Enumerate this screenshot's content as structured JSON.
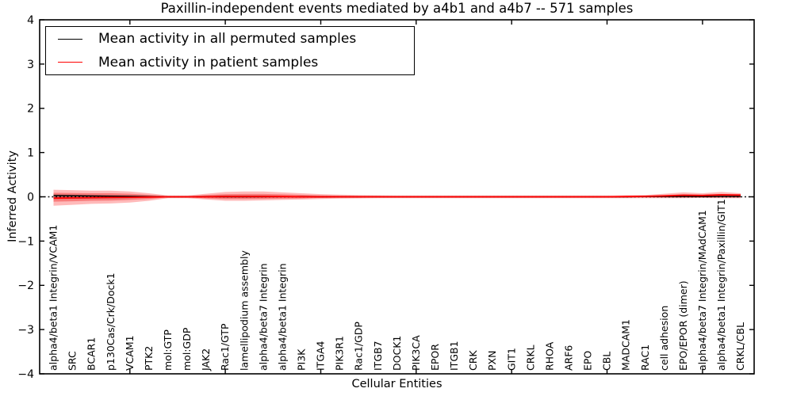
{
  "title": "Paxillin-independent events mediated by a4b1 and a4b7 -- 571 samples",
  "legend": {
    "items": [
      {
        "label": "Mean activity in all permuted samples",
        "color": "#000000"
      },
      {
        "label": "Mean activity in patient samples",
        "color": "#ff0000"
      }
    ]
  },
  "chart_data": {
    "type": "line",
    "title": "Paxillin-independent events mediated by a4b1 and a4b7 -- 571 samples",
    "xlabel": "Cellular Entities",
    "ylabel": "Inferred Activity",
    "ylim": [
      -4,
      4
    ],
    "yticks": [
      4,
      3,
      2,
      1,
      0,
      -1,
      -2,
      -3,
      -4
    ],
    "grid": false,
    "legend_position": "upper left",
    "zero_line": {
      "style": "dotted",
      "color": "#000000",
      "y": 0
    },
    "categories": [
      "alpha4/beta1 Integrin/VCAM1",
      "SRC",
      "BCAR1",
      "p130Cas/Crk/Dock1",
      "VCAM1",
      "PTK2",
      "mol:GTP",
      "mol:GDP",
      "JAK2",
      "Rac1/GTP",
      "lamellipodium assembly",
      "alpha4/beta7 Integrin",
      "alpha4/beta1 Integrin",
      "PI3K",
      "ITGA4",
      "PIK3R1",
      "Rac1/GDP",
      "ITGB7",
      "DOCK1",
      "PIK3CA",
      "EPOR",
      "ITGB1",
      "CRK",
      "PXN",
      "GIT1",
      "CRKL",
      "RHOA",
      "ARF6",
      "EPO",
      "CBL",
      "MADCAM1",
      "RAC1",
      "cell adhesion",
      "EPO/EPOR (dimer)",
      "alpha4/beta7 Integrin/MAdCAM1",
      "alpha4/beta1 Integrin/Paxillin/GIT1",
      "CRKL/CBL"
    ],
    "major_xtick_indices": [
      4,
      9,
      14,
      19,
      24,
      29,
      34
    ],
    "series": [
      {
        "name": "Mean activity in all permuted samples",
        "color": "#000000",
        "values": [
          0.03,
          0.025,
          0.02,
          0.015,
          0.01,
          0.005,
          0,
          0,
          0.005,
          0.01,
          0.01,
          0.01,
          0.005,
          0.005,
          0,
          0,
          0,
          0,
          0,
          0,
          0,
          0,
          0,
          0,
          0,
          0,
          0,
          0,
          0,
          0,
          0,
          0.005,
          0.005,
          0.01,
          0.005,
          0.01,
          0.01
        ]
      },
      {
        "name": "Mean activity in patient samples",
        "color": "#ff0000",
        "values": [
          -0.03,
          -0.025,
          -0.02,
          -0.015,
          -0.01,
          -0.005,
          0,
          0,
          0,
          0.005,
          0.005,
          0.005,
          0.005,
          0,
          0,
          0,
          0,
          0,
          0,
          0,
          0,
          0,
          0,
          0,
          0,
          0,
          0,
          0,
          0,
          0,
          0.005,
          0.01,
          0.02,
          0.035,
          0.03,
          0.045,
          0.04
        ]
      }
    ],
    "bands": [
      {
        "name": "patient-band-outer",
        "color": "#ff0000",
        "opacity": 0.27,
        "upper": [
          0.16,
          0.15,
          0.14,
          0.14,
          0.12,
          0.08,
          0.03,
          0.03,
          0.07,
          0.11,
          0.12,
          0.12,
          0.1,
          0.08,
          0.06,
          0.05,
          0.04,
          0.035,
          0.03,
          0.03,
          0.03,
          0.03,
          0.03,
          0.03,
          0.03,
          0.03,
          0.03,
          0.03,
          0.03,
          0.03,
          0.035,
          0.04,
          0.07,
          0.1,
          0.08,
          0.11,
          0.08
        ],
        "lower": [
          -0.2,
          -0.18,
          -0.16,
          -0.15,
          -0.13,
          -0.09,
          -0.03,
          -0.03,
          -0.06,
          -0.09,
          -0.09,
          -0.08,
          -0.07,
          -0.06,
          -0.05,
          -0.04,
          -0.035,
          -0.03,
          -0.03,
          -0.03,
          -0.03,
          -0.03,
          -0.03,
          -0.03,
          -0.03,
          -0.03,
          -0.03,
          -0.03,
          -0.03,
          -0.03,
          -0.03,
          -0.03,
          -0.03,
          -0.03,
          -0.025,
          -0.03,
          -0.03
        ]
      },
      {
        "name": "patient-band-inner",
        "color": "#ee0000",
        "opacity": 0.33,
        "upper": [
          0.09,
          0.085,
          0.08,
          0.08,
          0.07,
          0.045,
          0.015,
          0.015,
          0.04,
          0.06,
          0.065,
          0.065,
          0.055,
          0.045,
          0.03,
          0.025,
          0.02,
          0.02,
          0.015,
          0.015,
          0.015,
          0.015,
          0.015,
          0.015,
          0.015,
          0.015,
          0.015,
          0.015,
          0.015,
          0.015,
          0.02,
          0.02,
          0.04,
          0.055,
          0.045,
          0.06,
          0.045
        ],
        "lower": [
          -0.11,
          -0.1,
          -0.09,
          -0.085,
          -0.07,
          -0.05,
          -0.015,
          -0.015,
          -0.035,
          -0.05,
          -0.05,
          -0.045,
          -0.04,
          -0.035,
          -0.025,
          -0.02,
          -0.02,
          -0.015,
          -0.015,
          -0.015,
          -0.015,
          -0.015,
          -0.015,
          -0.015,
          -0.015,
          -0.015,
          -0.015,
          -0.015,
          -0.015,
          -0.015,
          -0.015,
          -0.015,
          -0.015,
          -0.015,
          -0.012,
          -0.015,
          -0.015
        ]
      },
      {
        "name": "permuted-band",
        "color": "#222222",
        "opacity": 0.3,
        "upper": [
          0.05,
          0.045,
          0.04,
          0.035,
          0.03,
          0.02,
          0.008,
          0.008,
          0.015,
          0.025,
          0.025,
          0.02,
          0.015,
          0.01,
          0.008,
          0.008,
          0.008,
          0.008,
          0.008,
          0.008,
          0.008,
          0.008,
          0.008,
          0.008,
          0.008,
          0.008,
          0.008,
          0.008,
          0.008,
          0.008,
          0.008,
          0.008,
          0.01,
          0.012,
          0.012,
          0.012,
          0.012
        ],
        "lower": [
          -0.05,
          -0.045,
          -0.04,
          -0.035,
          -0.03,
          -0.02,
          -0.008,
          -0.008,
          -0.015,
          -0.025,
          -0.025,
          -0.02,
          -0.015,
          -0.01,
          -0.008,
          -0.008,
          -0.008,
          -0.008,
          -0.008,
          -0.008,
          -0.008,
          -0.008,
          -0.008,
          -0.008,
          -0.008,
          -0.008,
          -0.008,
          -0.008,
          -0.008,
          -0.008,
          -0.008,
          -0.008,
          -0.01,
          -0.012,
          -0.012,
          -0.012,
          -0.012
        ]
      }
    ]
  }
}
